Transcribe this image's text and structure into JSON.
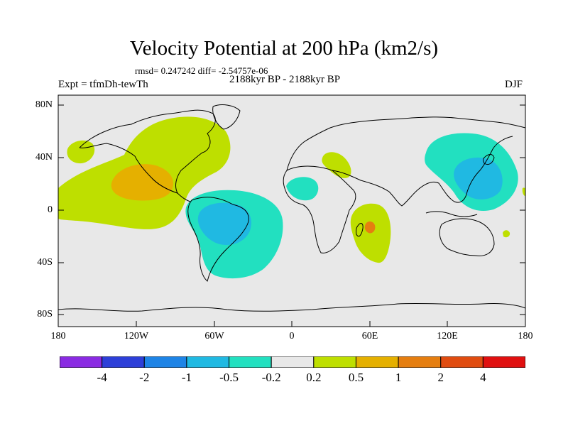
{
  "title": "Velocity Potential at 200 hPa (km2/s)",
  "rmsd_text": "rmsd= 0.247242 diff= -2.54757e-06",
  "period_text": "2188kyr BP - 2188kyr BP",
  "experiment_text": "Expt = tfmDh-tewTh",
  "season": "DJF",
  "lat_labels": [
    "80N",
    "40N",
    "0",
    "40S",
    "80S"
  ],
  "lon_labels": [
    "180",
    "120W",
    "60W",
    "0",
    "60E",
    "120E",
    "180"
  ],
  "colorbar": {
    "colors": [
      "#8a2be2",
      "#2d3fd8",
      "#1e84e6",
      "#20b9e2",
      "#22e0c0",
      "#e8e8e8",
      "#bedf00",
      "#e5b000",
      "#e57e10",
      "#e04c10",
      "#e01010"
    ],
    "labels": [
      "-4",
      "-2",
      "-1",
      "-0.5",
      "-0.2",
      "0.2",
      "0.5",
      "1",
      "2",
      "4"
    ]
  },
  "map_colors": {
    "background": "#e8e8e8",
    "positive_light": "#bedf00",
    "positive_mid": "#e5b000",
    "positive_strong": "#e57e10",
    "negative_light": "#22e0c0",
    "negative_mid": "#20b9e2",
    "coastline": "#000000"
  }
}
